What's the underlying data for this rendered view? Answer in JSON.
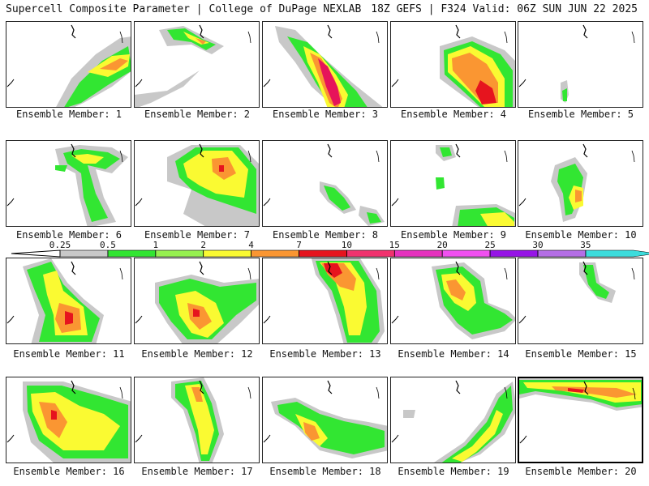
{
  "header": {
    "left": "Supercell Composite Parameter | College of DuPage NEXLAB",
    "right": "18Z GEFS | F324 Valid: 06Z SUN JUN 22 2025"
  },
  "panel_label_prefix": "Ensemble Member: ",
  "members": [
    {
      "id": 1,
      "label": "Ensemble Member: 1",
      "selected": false
    },
    {
      "id": 2,
      "label": "Ensemble Member: 2",
      "selected": false
    },
    {
      "id": 3,
      "label": "Ensemble Member: 3",
      "selected": false
    },
    {
      "id": 4,
      "label": "Ensemble Member: 4",
      "selected": false
    },
    {
      "id": 5,
      "label": "Ensemble Member: 5",
      "selected": false
    },
    {
      "id": 6,
      "label": "Ensemble Member: 6",
      "selected": false
    },
    {
      "id": 7,
      "label": "Ensemble Member: 7",
      "selected": false
    },
    {
      "id": 8,
      "label": "Ensemble Member: 8",
      "selected": false
    },
    {
      "id": 9,
      "label": "Ensemble Member: 9",
      "selected": false
    },
    {
      "id": 10,
      "label": "Ensemble Member: 10",
      "selected": false
    },
    {
      "id": 11,
      "label": "Ensemble Member: 11",
      "selected": false
    },
    {
      "id": 12,
      "label": "Ensemble Member: 12",
      "selected": false
    },
    {
      "id": 13,
      "label": "Ensemble Member: 13",
      "selected": false
    },
    {
      "id": 14,
      "label": "Ensemble Member: 14",
      "selected": false
    },
    {
      "id": 15,
      "label": "Ensemble Member: 15",
      "selected": false
    },
    {
      "id": 16,
      "label": "Ensemble Member: 16",
      "selected": false
    },
    {
      "id": 17,
      "label": "Ensemble Member: 17",
      "selected": false
    },
    {
      "id": 18,
      "label": "Ensemble Member: 18",
      "selected": false
    },
    {
      "id": 19,
      "label": "Ensemble Member: 19",
      "selected": false
    },
    {
      "id": 20,
      "label": "Ensemble Member: 20",
      "selected": true
    }
  ],
  "colorbar": {
    "ticks": [
      "0.25",
      "0.5",
      "1",
      "2",
      "4",
      "7",
      "10",
      "15",
      "20",
      "25",
      "30",
      "35"
    ],
    "colors": [
      "#c8c8c8",
      "#32e632",
      "#96f050",
      "#fafa32",
      "#fa9632",
      "#e6141e",
      "#f0326e",
      "#e632be",
      "#f050f0",
      "#9614e6",
      "#b46ee6",
      "#3cdcdc"
    ]
  },
  "colors": {
    "gray": "#c8c8c8",
    "green": "#32e632",
    "lightgreen": "#96f050",
    "yellow": "#fafa32",
    "orange": "#fa9632",
    "red": "#e6141e",
    "magenta": "#e6145a"
  }
}
